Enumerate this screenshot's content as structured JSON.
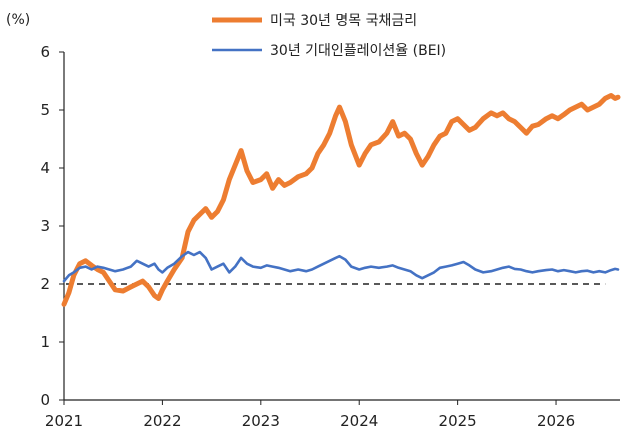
{
  "chart_data": {
    "type": "line",
    "unit_label": "(%)",
    "ylim": [
      0,
      6
    ],
    "y_ticks": [
      0,
      1,
      2,
      3,
      4,
      5,
      6
    ],
    "xlim": [
      2021.0,
      2026.65
    ],
    "x_ticks": [
      "2021",
      "2022",
      "2023",
      "2024",
      "2025",
      "2026"
    ],
    "grid": false,
    "legend_placement": "top",
    "reference_line": {
      "y": 2.0,
      "style": "dashed",
      "color": "#222222"
    },
    "series": [
      {
        "name": "미국 30년 명목 국채금리",
        "color": "#ED7D31",
        "points": [
          [
            2021.0,
            1.65
          ],
          [
            2021.05,
            1.85
          ],
          [
            2021.1,
            2.15
          ],
          [
            2021.16,
            2.35
          ],
          [
            2021.22,
            2.4
          ],
          [
            2021.28,
            2.32
          ],
          [
            2021.34,
            2.25
          ],
          [
            2021.4,
            2.2
          ],
          [
            2021.46,
            2.05
          ],
          [
            2021.52,
            1.9
          ],
          [
            2021.6,
            1.88
          ],
          [
            2021.68,
            1.95
          ],
          [
            2021.74,
            2.0
          ],
          [
            2021.8,
            2.05
          ],
          [
            2021.86,
            1.95
          ],
          [
            2021.92,
            1.8
          ],
          [
            2021.96,
            1.75
          ],
          [
            2022.0,
            1.9
          ],
          [
            2022.05,
            2.05
          ],
          [
            2022.12,
            2.25
          ],
          [
            2022.2,
            2.45
          ],
          [
            2022.26,
            2.9
          ],
          [
            2022.32,
            3.1
          ],
          [
            2022.38,
            3.2
          ],
          [
            2022.44,
            3.3
          ],
          [
            2022.5,
            3.15
          ],
          [
            2022.56,
            3.25
          ],
          [
            2022.62,
            3.45
          ],
          [
            2022.68,
            3.8
          ],
          [
            2022.74,
            4.05
          ],
          [
            2022.8,
            4.3
          ],
          [
            2022.86,
            3.95
          ],
          [
            2022.92,
            3.75
          ],
          [
            2023.0,
            3.8
          ],
          [
            2023.06,
            3.9
          ],
          [
            2023.12,
            3.65
          ],
          [
            2023.18,
            3.8
          ],
          [
            2023.24,
            3.7
          ],
          [
            2023.3,
            3.75
          ],
          [
            2023.38,
            3.85
          ],
          [
            2023.46,
            3.9
          ],
          [
            2023.52,
            4.0
          ],
          [
            2023.58,
            4.25
          ],
          [
            2023.64,
            4.4
          ],
          [
            2023.7,
            4.6
          ],
          [
            2023.76,
            4.9
          ],
          [
            2023.8,
            5.05
          ],
          [
            2023.86,
            4.8
          ],
          [
            2023.92,
            4.4
          ],
          [
            2024.0,
            4.05
          ],
          [
            2024.06,
            4.25
          ],
          [
            2024.12,
            4.4
          ],
          [
            2024.2,
            4.45
          ],
          [
            2024.28,
            4.6
          ],
          [
            2024.34,
            4.8
          ],
          [
            2024.4,
            4.55
          ],
          [
            2024.46,
            4.6
          ],
          [
            2024.52,
            4.5
          ],
          [
            2024.58,
            4.25
          ],
          [
            2024.64,
            4.05
          ],
          [
            2024.7,
            4.2
          ],
          [
            2024.76,
            4.4
          ],
          [
            2024.82,
            4.55
          ],
          [
            2024.88,
            4.6
          ],
          [
            2024.94,
            4.8
          ],
          [
            2025.0,
            4.85
          ],
          [
            2025.06,
            4.75
          ],
          [
            2025.12,
            4.65
          ],
          [
            2025.18,
            4.7
          ],
          [
            2025.26,
            4.85
          ],
          [
            2025.34,
            4.95
          ],
          [
            2025.4,
            4.9
          ],
          [
            2025.46,
            4.95
          ],
          [
            2025.52,
            4.85
          ],
          [
            2025.58,
            4.8
          ],
          [
            2025.64,
            4.7
          ],
          [
            2025.7,
            4.6
          ],
          [
            2025.76,
            4.72
          ],
          [
            2025.82,
            4.75
          ],
          [
            2025.9,
            4.85
          ],
          [
            2025.96,
            4.9
          ],
          [
            2026.02,
            4.85
          ],
          [
            2026.08,
            4.92
          ],
          [
            2026.14,
            5.0
          ],
          [
            2026.2,
            5.05
          ],
          [
            2026.26,
            5.1
          ],
          [
            2026.32,
            5.0
          ],
          [
            2026.38,
            5.05
          ],
          [
            2026.44,
            5.1
          ],
          [
            2026.5,
            5.2
          ],
          [
            2026.56,
            5.25
          ],
          [
            2026.6,
            5.2
          ],
          [
            2026.63,
            5.22
          ]
        ]
      },
      {
        "name": "30년 기대인플레이션율 (BEI)",
        "color": "#4472C4",
        "points": [
          [
            2021.0,
            2.05
          ],
          [
            2021.05,
            2.15
          ],
          [
            2021.1,
            2.2
          ],
          [
            2021.16,
            2.28
          ],
          [
            2021.22,
            2.3
          ],
          [
            2021.28,
            2.25
          ],
          [
            2021.34,
            2.3
          ],
          [
            2021.4,
            2.28
          ],
          [
            2021.46,
            2.25
          ],
          [
            2021.52,
            2.22
          ],
          [
            2021.6,
            2.25
          ],
          [
            2021.68,
            2.3
          ],
          [
            2021.74,
            2.4
          ],
          [
            2021.8,
            2.35
          ],
          [
            2021.86,
            2.3
          ],
          [
            2021.92,
            2.35
          ],
          [
            2021.96,
            2.25
          ],
          [
            2022.0,
            2.2
          ],
          [
            2022.05,
            2.28
          ],
          [
            2022.12,
            2.35
          ],
          [
            2022.2,
            2.48
          ],
          [
            2022.26,
            2.55
          ],
          [
            2022.32,
            2.5
          ],
          [
            2022.38,
            2.55
          ],
          [
            2022.44,
            2.45
          ],
          [
            2022.5,
            2.25
          ],
          [
            2022.56,
            2.3
          ],
          [
            2022.62,
            2.35
          ],
          [
            2022.68,
            2.2
          ],
          [
            2022.74,
            2.3
          ],
          [
            2022.8,
            2.45
          ],
          [
            2022.86,
            2.35
          ],
          [
            2022.92,
            2.3
          ],
          [
            2023.0,
            2.28
          ],
          [
            2023.06,
            2.32
          ],
          [
            2023.12,
            2.3
          ],
          [
            2023.18,
            2.28
          ],
          [
            2023.24,
            2.25
          ],
          [
            2023.3,
            2.22
          ],
          [
            2023.38,
            2.25
          ],
          [
            2023.46,
            2.22
          ],
          [
            2023.52,
            2.25
          ],
          [
            2023.58,
            2.3
          ],
          [
            2023.64,
            2.35
          ],
          [
            2023.7,
            2.4
          ],
          [
            2023.76,
            2.45
          ],
          [
            2023.8,
            2.48
          ],
          [
            2023.86,
            2.42
          ],
          [
            2023.92,
            2.3
          ],
          [
            2024.0,
            2.25
          ],
          [
            2024.06,
            2.28
          ],
          [
            2024.12,
            2.3
          ],
          [
            2024.2,
            2.28
          ],
          [
            2024.28,
            2.3
          ],
          [
            2024.34,
            2.32
          ],
          [
            2024.4,
            2.28
          ],
          [
            2024.46,
            2.25
          ],
          [
            2024.52,
            2.22
          ],
          [
            2024.58,
            2.15
          ],
          [
            2024.64,
            2.1
          ],
          [
            2024.7,
            2.15
          ],
          [
            2024.76,
            2.2
          ],
          [
            2024.82,
            2.28
          ],
          [
            2024.88,
            2.3
          ],
          [
            2024.94,
            2.32
          ],
          [
            2025.0,
            2.35
          ],
          [
            2025.06,
            2.38
          ],
          [
            2025.12,
            2.32
          ],
          [
            2025.18,
            2.25
          ],
          [
            2025.26,
            2.2
          ],
          [
            2025.34,
            2.22
          ],
          [
            2025.4,
            2.25
          ],
          [
            2025.46,
            2.28
          ],
          [
            2025.52,
            2.3
          ],
          [
            2025.58,
            2.26
          ],
          [
            2025.64,
            2.25
          ],
          [
            2025.7,
            2.22
          ],
          [
            2025.76,
            2.2
          ],
          [
            2025.82,
            2.22
          ],
          [
            2025.9,
            2.24
          ],
          [
            2025.96,
            2.25
          ],
          [
            2026.02,
            2.22
          ],
          [
            2026.08,
            2.24
          ],
          [
            2026.14,
            2.22
          ],
          [
            2026.2,
            2.2
          ],
          [
            2026.26,
            2.22
          ],
          [
            2026.32,
            2.23
          ],
          [
            2026.38,
            2.2
          ],
          [
            2026.44,
            2.22
          ],
          [
            2026.5,
            2.2
          ],
          [
            2026.56,
            2.24
          ],
          [
            2026.6,
            2.26
          ],
          [
            2026.63,
            2.25
          ]
        ]
      }
    ]
  }
}
